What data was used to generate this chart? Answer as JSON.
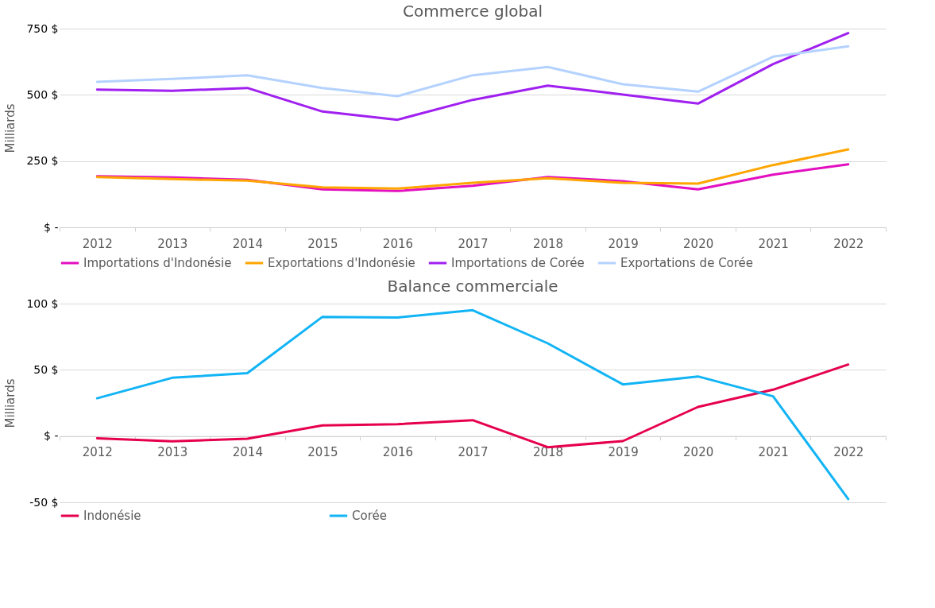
{
  "chart_data": [
    {
      "type": "line",
      "title": "Commerce global",
      "ylabel": "Milliards",
      "categories": [
        "2012",
        "2013",
        "2014",
        "2015",
        "2016",
        "2017",
        "2018",
        "2019",
        "2020",
        "2021",
        "2022"
      ],
      "series": [
        {
          "name": "Importations d'Indonésie",
          "color": "#e30fc0",
          "values": [
            193,
            188,
            179,
            143,
            137,
            157,
            190,
            174,
            143,
            199,
            238
          ]
        },
        {
          "name": "Exportations d'Indonésie",
          "color": "#ffa500",
          "values": [
            190,
            182,
            176,
            151,
            146,
            168,
            185,
            168,
            165,
            235,
            294
          ]
        },
        {
          "name": "Importations de Corée",
          "color": "#a020f0",
          "values": [
            520,
            515,
            526,
            437,
            406,
            481,
            535,
            501,
            467,
            616,
            733
          ]
        },
        {
          "name": "Exportations de Corée",
          "color": "#b4d2ff",
          "values": [
            549,
            560,
            574,
            526,
            495,
            574,
            605,
            540,
            512,
            644,
            683
          ]
        }
      ],
      "ylim": [
        0,
        750
      ],
      "yticks": [
        {
          "value": 0,
          "label": "$ -"
        },
        {
          "value": 250,
          "label": "250 $"
        },
        {
          "value": 500,
          "label": "500 $"
        },
        {
          "value": 750,
          "label": "750 $"
        }
      ],
      "grid": "y",
      "legend": "bottom"
    },
    {
      "type": "line",
      "title": "Balance commerciale",
      "ylabel": "Milliards",
      "categories": [
        "2012",
        "2013",
        "2014",
        "2015",
        "2016",
        "2017",
        "2018",
        "2019",
        "2020",
        "2021",
        "2022"
      ],
      "series": [
        {
          "name": "Indonésie",
          "color": "#e6004c",
          "values": [
            -1.7,
            -4,
            -2,
            8,
            9,
            12,
            -8.4,
            -3.8,
            22,
            35,
            54
          ]
        },
        {
          "name": "Corée",
          "color": "#12b4f5",
          "values": [
            28.5,
            44,
            47.5,
            90,
            89.5,
            95,
            70,
            39,
            45,
            30,
            -47.5
          ]
        }
      ],
      "ylim": [
        -50,
        100
      ],
      "yticks": [
        {
          "value": -50,
          "label": "-50 $"
        },
        {
          "value": 0,
          "label": "$ -"
        },
        {
          "value": 50,
          "label": "50 $"
        },
        {
          "value": 100,
          "label": "100 $"
        }
      ],
      "grid": "y",
      "legend": "bottom"
    }
  ]
}
